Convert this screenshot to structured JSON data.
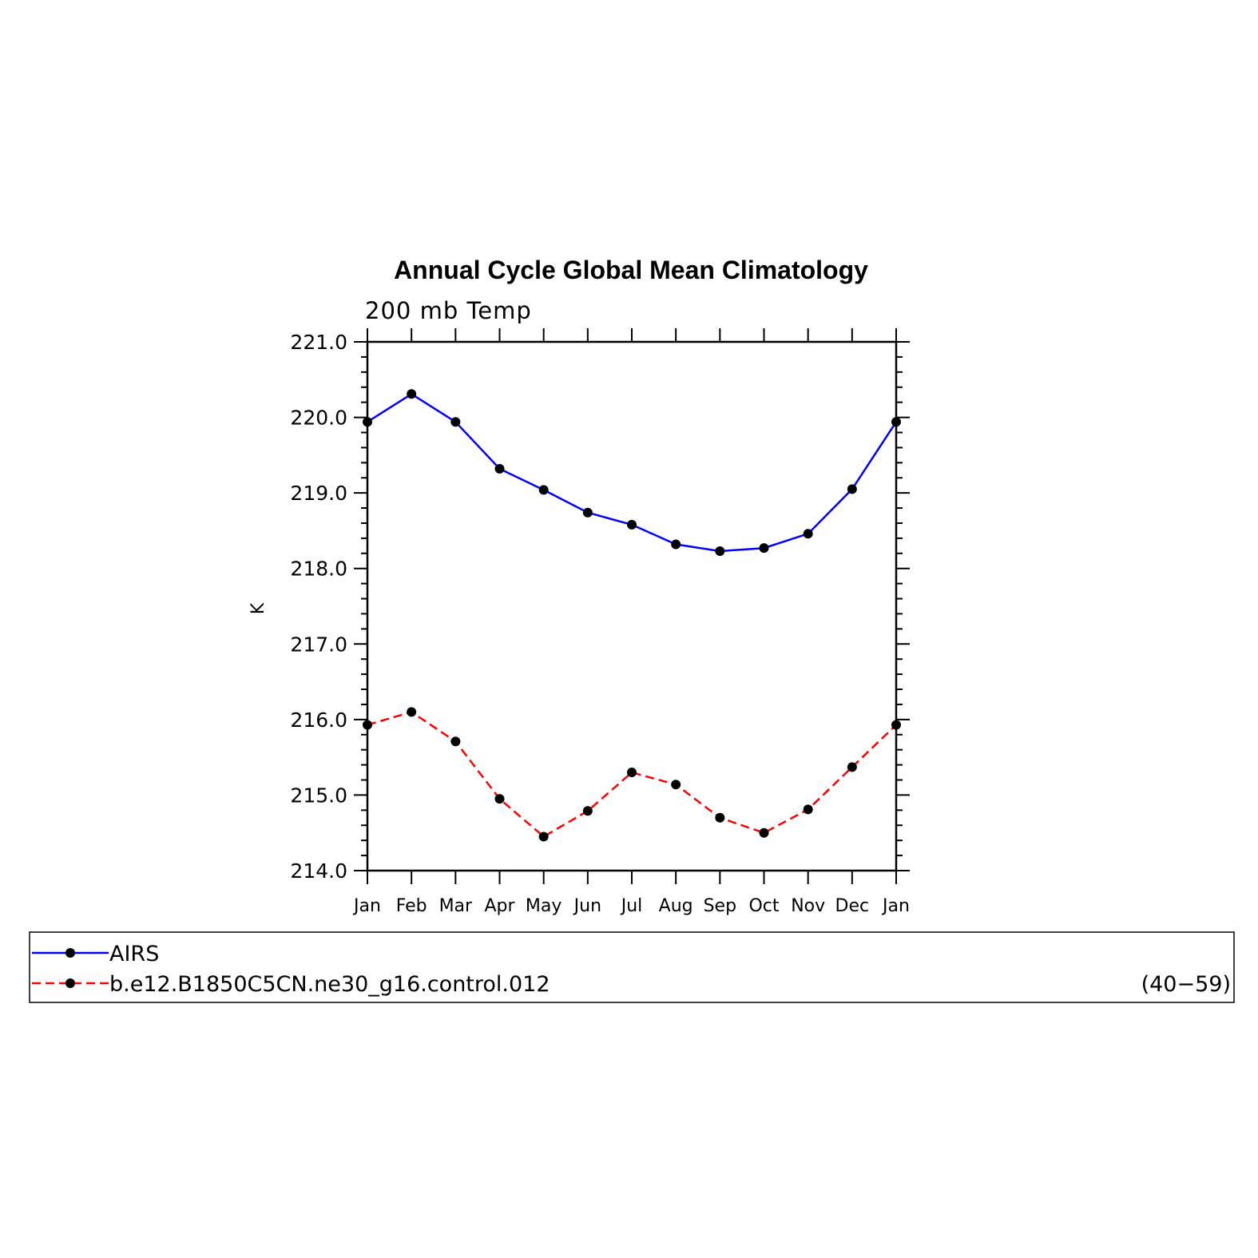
{
  "chart_data": {
    "type": "line",
    "title": "Annual Cycle Global Mean Climatology",
    "subtitle": "200 mb Temp",
    "ylabel": "K",
    "xlabel": "",
    "ylim": [
      214.0,
      221.0
    ],
    "y_ticks": [
      "214.0",
      "215.0",
      "216.0",
      "217.0",
      "218.0",
      "219.0",
      "220.0",
      "221.0"
    ],
    "categories": [
      "Jan",
      "Feb",
      "Mar",
      "Apr",
      "May",
      "Jun",
      "Jul",
      "Aug",
      "Sep",
      "Oct",
      "Nov",
      "Dec",
      "Jan"
    ],
    "grid": false,
    "legend_position": "bottom",
    "series": [
      {
        "name": "AIRS",
        "color": "#0000ff",
        "line_style": "solid",
        "marker": "filled-circle",
        "values": [
          219.94,
          220.31,
          219.94,
          219.32,
          219.04,
          218.74,
          218.58,
          218.32,
          218.23,
          218.27,
          218.46,
          219.05,
          219.94
        ]
      },
      {
        "name": "b.e12.B1850C5CN.ne30_g16.control.012",
        "years": "(40−59)",
        "color": "#ff0000",
        "line_style": "dashed",
        "marker": "filled-circle",
        "values": [
          215.93,
          216.1,
          215.71,
          214.95,
          214.45,
          214.79,
          215.3,
          215.14,
          214.7,
          214.5,
          214.81,
          215.37,
          215.93
        ]
      }
    ]
  }
}
